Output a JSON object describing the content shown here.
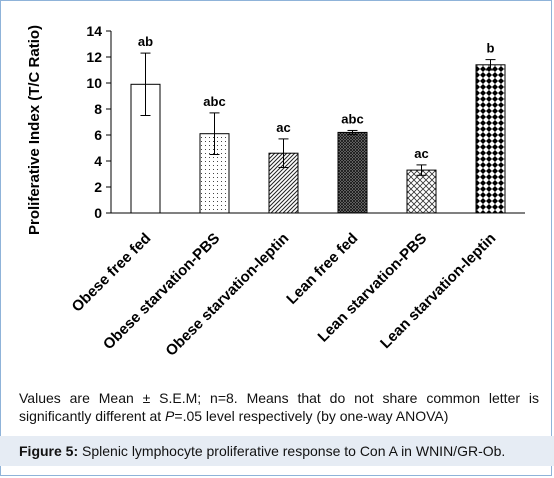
{
  "chart_data": {
    "type": "bar",
    "ylabel": "Proliferative Index (T/C Ratio)",
    "ylim": [
      0,
      14
    ],
    "yticks": [
      "0",
      "2",
      "4",
      "6",
      "8",
      "10",
      "12",
      "14"
    ],
    "categories": [
      "Obese free fed",
      "Obese starvation-PBS",
      "Obese starvation-leptin",
      "Lean free fed",
      "Lean starvation-PBS",
      "Lean starvation-leptin"
    ],
    "values": [
      9.9,
      6.1,
      4.6,
      6.2,
      3.3,
      11.4
    ],
    "errors": [
      2.4,
      1.6,
      1.1,
      0.15,
      0.4,
      0.4
    ],
    "labels": [
      "ab",
      "abc",
      "ac",
      "abc",
      "ac",
      "b"
    ],
    "patterns": [
      "plain",
      "dots",
      "diagonal",
      "crosshatch-dark",
      "diamond-lattice",
      "checker"
    ],
    "grid": false,
    "legend": "none"
  },
  "note": {
    "pre": "Values are Mean ± S.E.M; n=8. Means that do not share common letter is significantly different at ",
    "p_symbol": "P",
    "post": "=.05 level respectively (by one-way ANOVA)"
  },
  "caption": {
    "label": "Figure 5:",
    "text": " Splenic lymphocyte proliferative response to Con A in WNIN/GR-Ob."
  }
}
